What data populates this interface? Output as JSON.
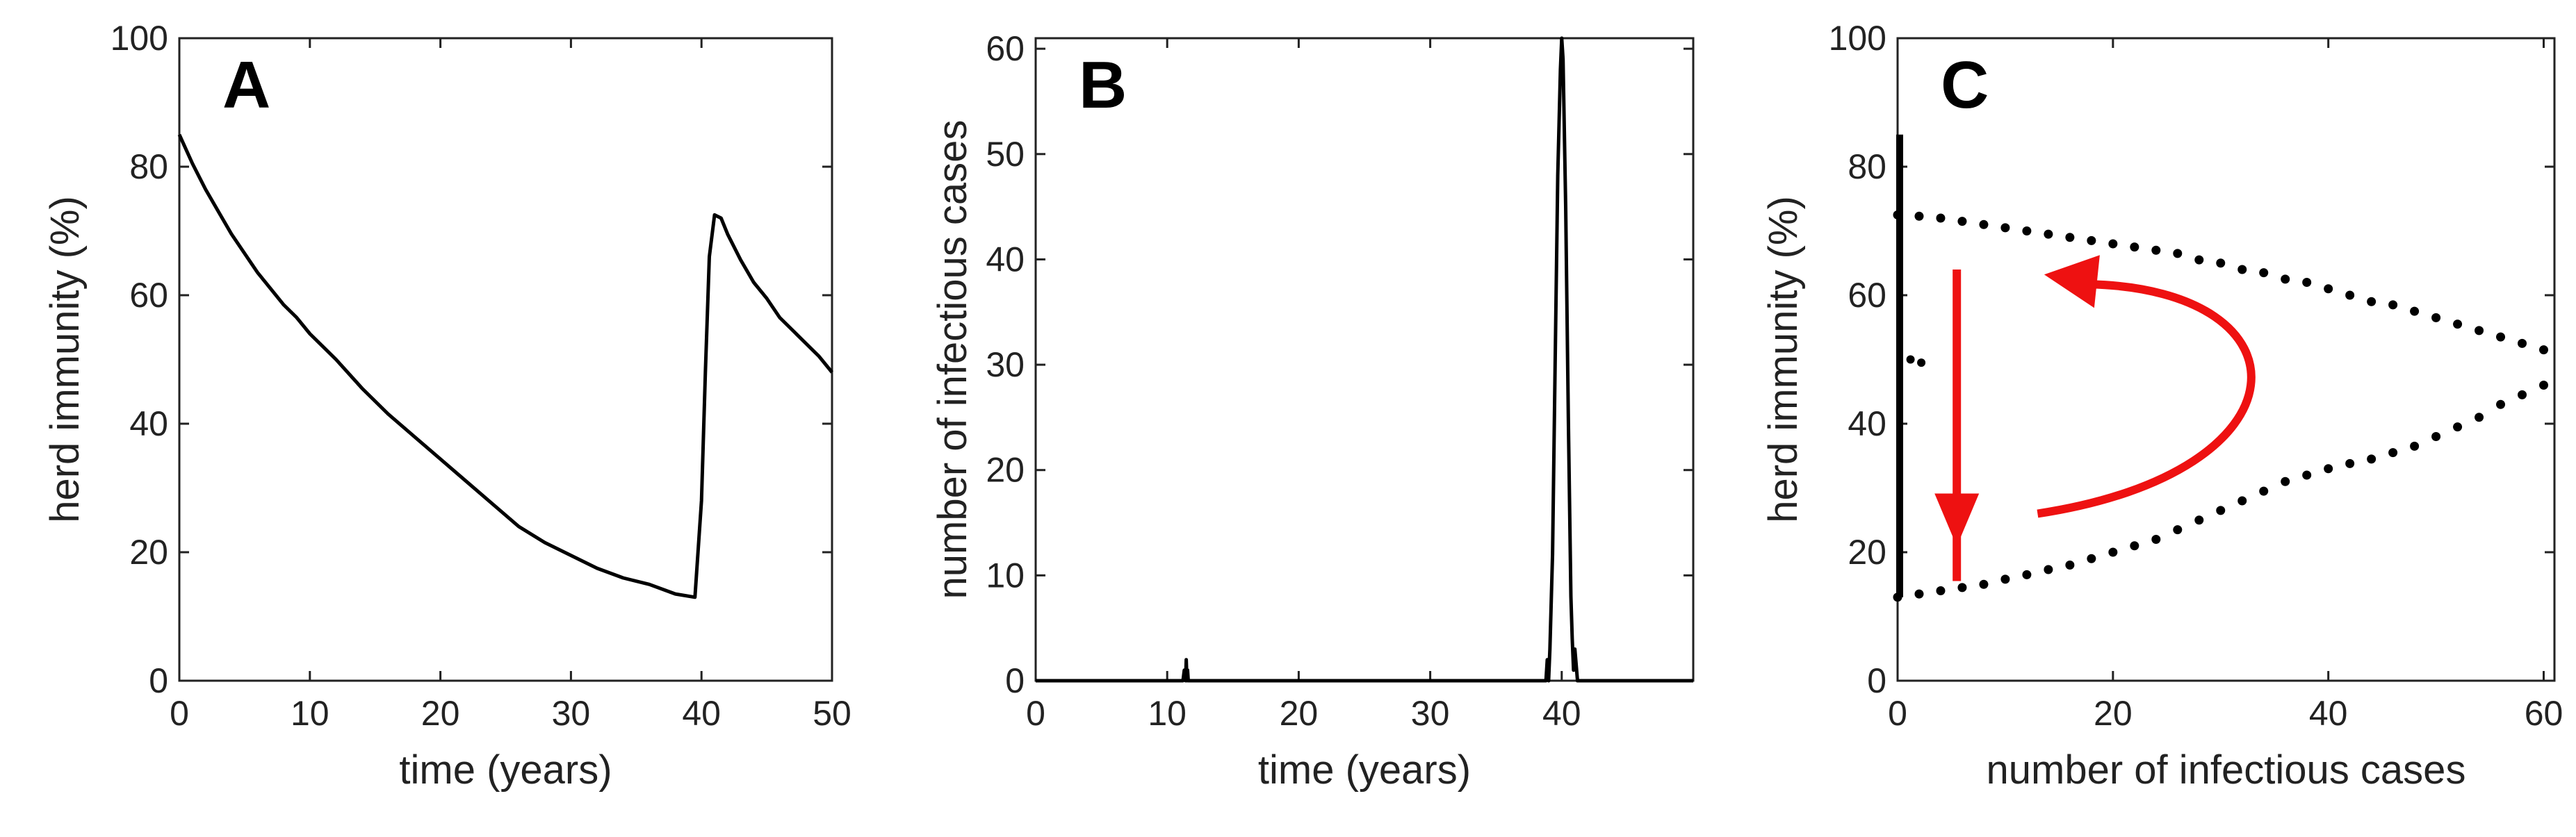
{
  "colors": {
    "line": "#000000",
    "arrow": "#ee1111",
    "axis": "#222222"
  },
  "chart_data": [
    {
      "type": "line",
      "panel_label": "A",
      "xlabel": "time (years)",
      "ylabel": "herd immunity (%)",
      "xlim": [
        0,
        50
      ],
      "ylim": [
        0,
        100
      ],
      "xticks": [
        "0",
        "10",
        "20",
        "30",
        "40",
        "50"
      ],
      "yticks": [
        "0",
        "20",
        "40",
        "60",
        "80",
        "100"
      ],
      "series": [
        {
          "x": [
            0,
            1,
            2,
            3,
            4,
            5,
            6,
            7,
            8,
            9,
            10,
            12,
            14,
            16,
            18,
            20,
            22,
            24,
            26,
            28,
            30,
            32,
            34,
            36,
            38,
            39.5,
            40,
            40.3,
            40.6,
            41,
            41.5,
            42,
            43,
            44,
            45,
            46,
            47,
            48,
            49,
            50
          ],
          "y": [
            85,
            80.5,
            76.5,
            73,
            69.5,
            66.5,
            63.5,
            61,
            58.5,
            56.5,
            54,
            50,
            45.5,
            41.5,
            38,
            34.5,
            31,
            27.5,
            24,
            21.5,
            19.5,
            17.5,
            16,
            15,
            13.5,
            13,
            28,
            48,
            66,
            72.5,
            72,
            69.5,
            65.5,
            62,
            59.5,
            56.5,
            54.5,
            52.5,
            50.5,
            48
          ]
        }
      ]
    },
    {
      "type": "line",
      "panel_label": "B",
      "xlabel": "time (years)",
      "ylabel": "number of infectious cases",
      "xlim": [
        0,
        50
      ],
      "ylim": [
        0,
        61
      ],
      "xticks": [
        "0",
        "10",
        "20",
        "30",
        "40"
      ],
      "yticks": [
        "0",
        "10",
        "20",
        "30",
        "40",
        "50",
        "60"
      ],
      "series": [
        {
          "x": [
            0,
            11.2,
            11.3,
            11.4,
            11.45,
            11.5,
            11.55,
            11.6,
            11.7,
            38.8,
            38.9,
            39.0,
            39.1,
            39.3,
            39.5,
            39.7,
            39.9,
            40.0,
            40.1,
            40.3,
            40.5,
            40.7,
            40.8,
            40.9,
            41.0,
            41.2,
            50
          ],
          "y": [
            0,
            0,
            1,
            0,
            2,
            0,
            1,
            0,
            0,
            0,
            2,
            0,
            3,
            12,
            30,
            48,
            58,
            61,
            59,
            45,
            25,
            8,
            4,
            1,
            3,
            0,
            0
          ]
        }
      ]
    },
    {
      "type": "scatter",
      "panel_label": "C",
      "xlabel": "number of infectious cases",
      "ylabel": "herd immunity (%)",
      "xlim": [
        0,
        61
      ],
      "ylim": [
        0,
        100
      ],
      "xticks": [
        "0",
        "20",
        "40",
        "60"
      ],
      "yticks": [
        "0",
        "20",
        "40",
        "60",
        "80",
        "100"
      ],
      "vertical_line": {
        "x": 0,
        "y_from": 13,
        "y_to": 85
      },
      "isolated_points": [
        [
          1.2,
          50
        ],
        [
          2.2,
          49.5
        ]
      ],
      "point_series": [
        {
          "x": [
            0,
            2,
            4,
            6,
            8,
            10,
            12,
            14,
            16,
            18,
            20,
            22,
            24,
            26,
            28,
            30,
            32,
            34,
            36,
            38,
            40,
            42,
            44,
            46,
            48,
            50,
            52,
            54,
            56,
            58,
            60
          ],
          "y": [
            72.5,
            72.3,
            72,
            71.5,
            71,
            70.5,
            70,
            69.5,
            69,
            68.5,
            68,
            67.5,
            67,
            66.5,
            65.5,
            65,
            64,
            63.5,
            62.5,
            62,
            61,
            60,
            59,
            58.5,
            57.5,
            56.5,
            55.5,
            54.5,
            53.5,
            52.5,
            51.5
          ]
        },
        {
          "x": [
            0,
            2,
            4,
            6,
            8,
            10,
            12,
            14,
            16,
            18,
            20,
            22,
            24,
            26,
            28,
            30,
            32,
            34,
            36,
            38,
            40,
            42,
            44,
            46,
            48,
            50,
            52,
            54,
            56,
            58,
            60
          ],
          "y": [
            13,
            13.5,
            14,
            14.5,
            15,
            15.8,
            16.5,
            17.3,
            18,
            19,
            20,
            21,
            22,
            23.5,
            25,
            26.5,
            28,
            29.5,
            31,
            32,
            33,
            33.8,
            34.5,
            35.5,
            36.5,
            38,
            39.5,
            41,
            43,
            44.5,
            46
          ]
        }
      ],
      "annotations": [
        {
          "type": "arrow",
          "shape": "straight",
          "direction": "down",
          "from": [
            5.5,
            64
          ],
          "to": [
            5.5,
            22
          ]
        },
        {
          "type": "arrow",
          "shape": "curved",
          "direction": "counterclockwise",
          "from": [
            13,
            26
          ],
          "via": [
            36,
            44
          ],
          "to": [
            14,
            63
          ]
        }
      ]
    }
  ]
}
